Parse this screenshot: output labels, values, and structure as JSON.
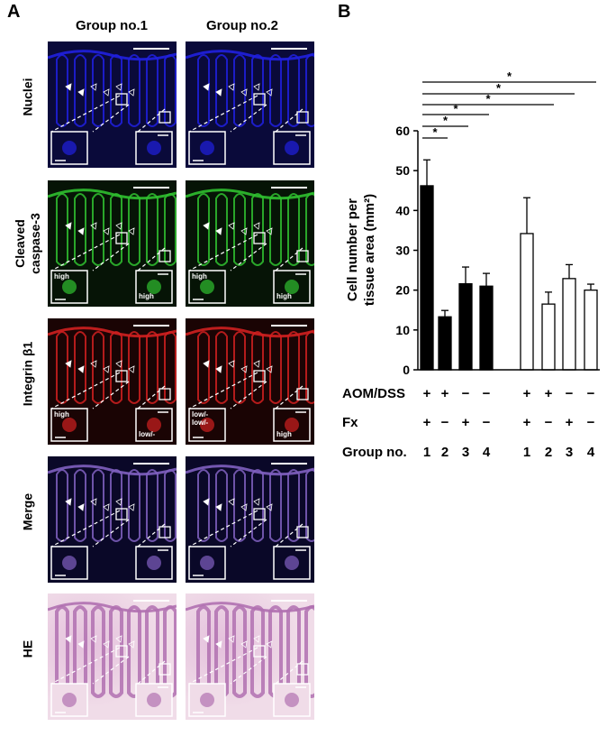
{
  "panels": {
    "a_letter": "A",
    "b_letter": "B"
  },
  "panel_a": {
    "group_titles": [
      "Group no.1",
      "Group no.2"
    ],
    "row_labels": [
      "Nuclei",
      "Cleaved\ncaspase-3",
      "Integrin β1",
      "Merge",
      "HE"
    ],
    "rows": [
      {
        "name": "nuclei",
        "bg": "#0a0a3a",
        "tissue": "#2020e0",
        "insets": [
          {
            "l": "",
            "r": ""
          },
          {
            "l": "",
            "r": ""
          }
        ]
      },
      {
        "name": "caspase",
        "bg": "#061406",
        "tissue": "#30c030",
        "insets": [
          {
            "l": "high",
            "r": "high"
          },
          {
            "l": "high",
            "r": "high"
          }
        ]
      },
      {
        "name": "integrin",
        "bg": "#1a0404",
        "tissue": "#d02020",
        "insets": [
          {
            "l": "high",
            "r": "low/-"
          },
          {
            "l": "low/-\nlow/-",
            "r": "high"
          }
        ]
      },
      {
        "name": "merge",
        "bg": "#0a0828",
        "tissue": "#8060c0",
        "insets": [
          {
            "l": "",
            "r": ""
          },
          {
            "l": "",
            "r": ""
          }
        ]
      },
      {
        "name": "he",
        "bg": "#f0dce8",
        "tissue": "#b070b0",
        "insets": [
          {
            "l": "",
            "r": ""
          },
          {
            "l": "",
            "r": ""
          }
        ]
      }
    ]
  },
  "chart_data": {
    "type": "bar",
    "ylabel": "Cell number per\ntissue area (mm²)",
    "ylim": [
      0,
      60
    ],
    "yticks": [
      "0",
      "10",
      "20",
      "30",
      "40",
      "50",
      "60"
    ],
    "bars": [
      {
        "group": "1",
        "value": 46.2,
        "err": 6.5,
        "fill": "#000000"
      },
      {
        "group": "2",
        "value": 13.3,
        "err": 1.6,
        "fill": "#000000"
      },
      {
        "group": "3",
        "value": 21.6,
        "err": 4.2,
        "fill": "#000000"
      },
      {
        "group": "4",
        "value": 21.0,
        "err": 3.2,
        "fill": "#000000"
      },
      {
        "group": "1",
        "value": 34.2,
        "err": 9.0,
        "fill": "#ffffff"
      },
      {
        "group": "2",
        "value": 16.5,
        "err": 3.0,
        "fill": "#ffffff"
      },
      {
        "group": "3",
        "value": 22.9,
        "err": 3.5,
        "fill": "#ffffff"
      },
      {
        "group": "4",
        "value": 20.0,
        "err": 1.5,
        "fill": "#ffffff"
      }
    ],
    "rows": [
      {
        "label": "AOM/DSS",
        "values": [
          "+",
          "+",
          "−",
          "−",
          "+",
          "+",
          "−",
          "−"
        ]
      },
      {
        "label": "Fx",
        "values": [
          "+",
          "−",
          "+",
          "−",
          "+",
          "−",
          "+",
          "−"
        ]
      },
      {
        "label": "Group no.",
        "values": [
          "1",
          "2",
          "3",
          "4",
          "1",
          "2",
          "3",
          "4"
        ]
      }
    ],
    "significance": [
      {
        "from": 0,
        "to": 1,
        "label": "*"
      },
      {
        "from": 0,
        "to": 2,
        "label": "*"
      },
      {
        "from": 0,
        "to": 3,
        "label": "*"
      },
      {
        "from": 0,
        "to": 5,
        "label": "*"
      },
      {
        "from": 0,
        "to": 6,
        "label": "*"
      },
      {
        "from": 0,
        "to": 7,
        "label": "*"
      }
    ]
  }
}
